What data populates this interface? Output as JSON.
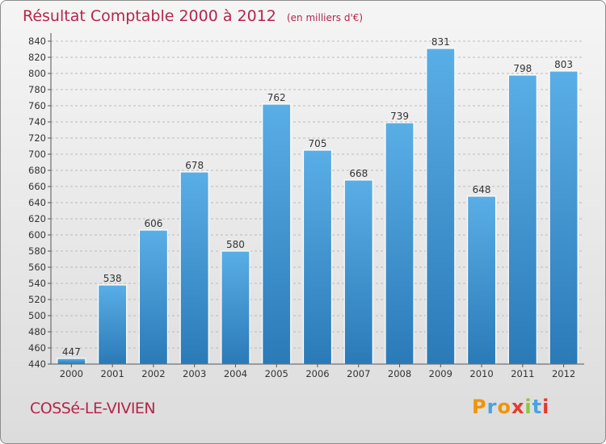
{
  "chart_data": {
    "type": "bar",
    "title": "Résultat Comptable 2000 à 2012",
    "subtitle": "(en milliers d'€)",
    "categories": [
      "2000",
      "2001",
      "2002",
      "2003",
      "2004",
      "2005",
      "2006",
      "2007",
      "2008",
      "2009",
      "2010",
      "2011",
      "2012"
    ],
    "values": [
      447,
      538,
      606,
      678,
      580,
      762,
      705,
      668,
      739,
      831,
      648,
      798,
      803
    ],
    "ylim": [
      440,
      850
    ],
    "yticks": [
      440,
      460,
      480,
      500,
      520,
      540,
      560,
      580,
      600,
      620,
      640,
      660,
      680,
      700,
      720,
      740,
      760,
      780,
      800,
      820,
      840
    ],
    "grid": true,
    "xlabel": "",
    "ylabel": ""
  },
  "commune": "COSSé-LE-VIVIEN",
  "logo": {
    "text": "Proxiti",
    "letter_colors": [
      "#f29400",
      "#4aa3df",
      "#f29400",
      "#e53a2f",
      "#8cc63f",
      "#4aa3df",
      "#e53a2f"
    ]
  },
  "colors": {
    "title": "#b5254a",
    "bar_top": "#5aaee6",
    "bar_bottom": "#2a7ab8",
    "grid": "#bbbbbb"
  }
}
